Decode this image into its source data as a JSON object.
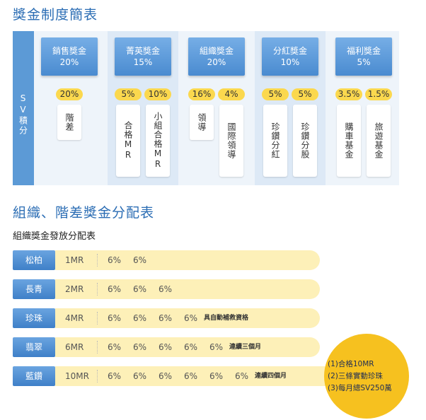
{
  "header": {
    "title": "獎金制度簡表"
  },
  "bonus_table": {
    "row_label": "SV積分",
    "groups": [
      {
        "name": "銷售獎金",
        "share": "20%",
        "items": [
          {
            "share": "20%",
            "label": "階差"
          }
        ]
      },
      {
        "name": "菁英獎金",
        "share": "15%",
        "items": [
          {
            "share": "5%",
            "label": "合格MR"
          },
          {
            "share": "10%",
            "label": "小組合格MR"
          }
        ]
      },
      {
        "name": "組織獎金",
        "share": "20%",
        "items": [
          {
            "share": "16%",
            "label": "領導"
          },
          {
            "share": "4%",
            "label": "國際領導"
          }
        ]
      },
      {
        "name": "分紅獎金",
        "share": "10%",
        "items": [
          {
            "share": "5%",
            "label": "珍鑽分紅"
          },
          {
            "share": "5%",
            "label": "珍鑽分股"
          }
        ]
      },
      {
        "name": "福利獎金",
        "share": "5%",
        "items": [
          {
            "share": "3.5%",
            "label": "購車基金"
          },
          {
            "share": "1.5%",
            "label": "旅遊基金"
          }
        ]
      }
    ]
  },
  "distribution": {
    "title": "組織、階差獎金分配表",
    "subtitle": "組織獎金發放分配表",
    "rows": [
      {
        "rank": "松柏",
        "level": "1MR",
        "percents": [
          "6%",
          "6%"
        ]
      },
      {
        "rank": "長青",
        "level": "2MR",
        "percents": [
          "6%",
          "6%",
          "6%"
        ]
      },
      {
        "rank": "珍珠",
        "level": "4MR",
        "percents": [
          "6%",
          "6%",
          "6%",
          "6%"
        ],
        "note": "具自動補救資格"
      },
      {
        "rank": "翡翠",
        "level": "6MR",
        "percents": [
          "6%",
          "6%",
          "6%",
          "6%",
          "6%"
        ],
        "note": "連續三個月"
      },
      {
        "rank": "藍鑽",
        "level": "10MR",
        "percents": [
          "6%",
          "6%",
          "6%",
          "6%",
          "6%",
          "6%"
        ],
        "note": "連續四個月"
      }
    ],
    "conditions": [
      "(1)合格10MR",
      "(2)三條實動珍珠",
      "(3)每月總SV250萬"
    ]
  }
}
